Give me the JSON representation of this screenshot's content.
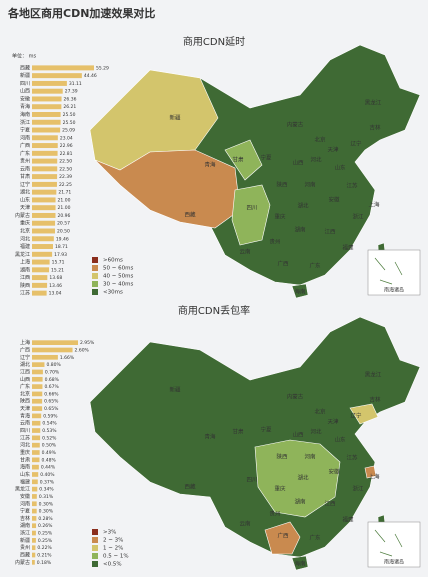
{
  "title": "各地区商用CDN加速效果对比",
  "chart_data": [
    {
      "type": "bar",
      "title": "商用CDN延时",
      "unit_label": "单位： ms",
      "color": "#e6c06a",
      "categories": [
        "西藏",
        "新疆",
        "四川",
        "山西",
        "安徽",
        "青海",
        "海南",
        "浙江",
        "宁夏",
        "河南",
        "广西",
        "广东",
        "贵州",
        "云南",
        "甘肃",
        "辽宁",
        "湖北",
        "山东",
        "天津",
        "内蒙古",
        "重庆",
        "北京",
        "河北",
        "福建",
        "黑龙江",
        "上海",
        "湖南",
        "江西",
        "陕西",
        "江苏"
      ],
      "values": [
        55.29,
        44.46,
        31.11,
        27.39,
        26.36,
        26.21,
        25.5,
        25.5,
        25.09,
        23.04,
        22.96,
        22.81,
        22.5,
        22.5,
        22.39,
        22.25,
        21.71,
        21,
        21,
        20.96,
        20.57,
        20.5,
        19.46,
        18.71,
        17.93,
        15.71,
        15.21,
        13.68,
        13.46,
        13.04
      ],
      "value_labels": [
        "55.29",
        "44.46",
        "31.11",
        "27.39",
        "26.36",
        "26.21",
        "25.50",
        "25.50",
        "25.09",
        "23.04",
        "22.96",
        "22.81",
        "22.50",
        "22.50",
        "22.39",
        "22.25",
        "21.71",
        "21.00",
        "21.00",
        "20.96",
        "20.57",
        "20.50",
        "19.46",
        "18.71",
        "17.93",
        "15.71",
        "15.21",
        "13.68",
        "13.46",
        "13.04"
      ],
      "map": {
        "legend": [
          {
            "name": ">60ms",
            "color": "#8a2d1c"
          },
          {
            "name": "50 ~ 60ms",
            "color": "#c98a4f"
          },
          {
            "name": "40 ~ 50ms",
            "color": "#d3c56c"
          },
          {
            "name": "30 ~ 40ms",
            "color": "#8fb45a"
          },
          {
            "name": "<30ms",
            "color": "#3f6a34"
          }
        ],
        "labels": [
          "新疆",
          "西藏",
          "青海",
          "甘肃",
          "内蒙古",
          "黑龙江",
          "吉林",
          "辽宁",
          "北京",
          "天津",
          "河北",
          "宁夏",
          "山西",
          "山东",
          "陕西",
          "河南",
          "江苏",
          "安徽",
          "湖北",
          "四川",
          "重庆",
          "浙江",
          "上海",
          "湖南",
          "江西",
          "贵州",
          "云南",
          "福建",
          "广西",
          "广东",
          "台湾",
          "海南"
        ],
        "inset": "南海诸岛"
      }
    },
    {
      "type": "bar",
      "title": "商用CDN丢包率",
      "color": "#e6c06a",
      "categories": [
        "上海",
        "广西",
        "辽宁",
        "湖北",
        "江西",
        "山西",
        "广东",
        "北京",
        "陕西",
        "天津",
        "青海",
        "云南",
        "四川",
        "江苏",
        "河北",
        "重庆",
        "甘肃",
        "海南",
        "山东",
        "福建",
        "黑龙江",
        "安徽",
        "河南",
        "宁夏",
        "吉林",
        "湖南",
        "浙江",
        "新疆",
        "贵州",
        "西藏",
        "内蒙古"
      ],
      "values": [
        2.95,
        2.6,
        1.66,
        0.8,
        0.7,
        0.68,
        0.67,
        0.66,
        0.65,
        0.65,
        0.59,
        0.54,
        0.53,
        0.52,
        0.5,
        0.49,
        0.48,
        0.44,
        0.4,
        0.37,
        0.34,
        0.31,
        0.3,
        0.3,
        0.28,
        0.26,
        0.25,
        0.25,
        0.22,
        0.21,
        0.18
      ],
      "value_labels": [
        "2.95%",
        "2.60%",
        "1.66%",
        "0.80%",
        "0.70%",
        "0.68%",
        "0.67%",
        "0.66%",
        "0.65%",
        "0.65%",
        "0.59%",
        "0.54%",
        "0.53%",
        "0.52%",
        "0.50%",
        "0.49%",
        "0.48%",
        "0.44%",
        "0.40%",
        "0.37%",
        "0.34%",
        "0.31%",
        "0.30%",
        "0.30%",
        "0.28%",
        "0.26%",
        "0.25%",
        "0.25%",
        "0.22%",
        "0.21%",
        "0.18%"
      ],
      "map": {
        "legend": [
          {
            "name": ">3%",
            "color": "#8a2d1c"
          },
          {
            "name": "2 ~ 3%",
            "color": "#c98a4f"
          },
          {
            "name": "1 ~ 2%",
            "color": "#d3c56c"
          },
          {
            "name": "0.5 ~ 1%",
            "color": "#8fb45a"
          },
          {
            "name": "<0.5%",
            "color": "#3f6a34"
          }
        ],
        "labels": [
          "新疆",
          "西藏",
          "青海",
          "甘肃",
          "内蒙古",
          "黑龙江",
          "吉林",
          "辽宁",
          "北京",
          "天津",
          "河北",
          "宁夏",
          "山西",
          "山东",
          "陕西",
          "河南",
          "江苏",
          "安徽",
          "湖北",
          "四川",
          "重庆",
          "浙江",
          "上海",
          "湖南",
          "江西",
          "贵州",
          "云南",
          "福建",
          "广西",
          "广东",
          "台湾",
          "海南"
        ],
        "inset": "南海诸岛"
      }
    }
  ]
}
